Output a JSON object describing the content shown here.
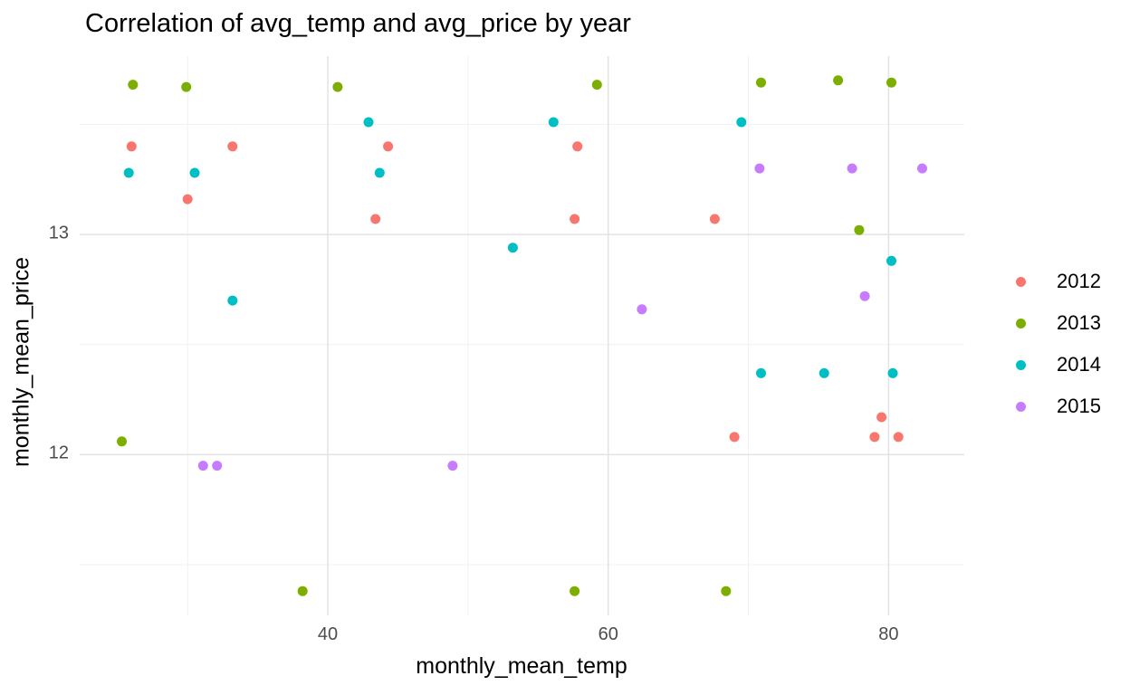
{
  "chart_data": {
    "type": "scatter",
    "title": "Correlation of avg_temp and avg_price by year",
    "xlabel": "monthly_mean_temp",
    "ylabel": "monthly_mean_price",
    "xlim": [
      22.3,
      85.4
    ],
    "ylim": [
      11.27,
      13.81
    ],
    "grid": "major_and_minor",
    "legend_position": "right",
    "point_radius_px": 5.5,
    "x_ticks": [
      {
        "value": 40,
        "label": "40"
      },
      {
        "value": 60,
        "label": "60"
      },
      {
        "value": 80,
        "label": "80"
      }
    ],
    "y_ticks": [
      {
        "value": 12,
        "label": "12"
      },
      {
        "value": 13,
        "label": "13"
      }
    ],
    "x_minor_gridlines": [
      30,
      50,
      70
    ],
    "y_minor_gridlines": [
      11.5,
      12.5,
      13.5
    ],
    "series": [
      {
        "name": "2012",
        "color": "#F8766D",
        "points": [
          [
            26.0,
            13.4
          ],
          [
            30.0,
            13.16
          ],
          [
            33.2,
            13.4
          ],
          [
            43.4,
            13.07
          ],
          [
            44.3,
            13.4
          ],
          [
            57.6,
            13.07
          ],
          [
            57.8,
            13.4
          ],
          [
            67.6,
            13.07
          ],
          [
            69.0,
            12.08
          ],
          [
            79.0,
            12.08
          ],
          [
            79.5,
            12.17
          ],
          [
            80.7,
            12.08
          ]
        ]
      },
      {
        "name": "2013",
        "color": "#7CAE00",
        "points": [
          [
            25.3,
            12.06
          ],
          [
            26.1,
            13.68
          ],
          [
            29.9,
            13.67
          ],
          [
            38.2,
            11.38
          ],
          [
            40.7,
            13.67
          ],
          [
            57.6,
            11.38
          ],
          [
            59.2,
            13.68
          ],
          [
            68.4,
            11.38
          ],
          [
            70.9,
            13.69
          ],
          [
            76.4,
            13.7
          ],
          [
            77.9,
            13.02
          ],
          [
            80.2,
            13.69
          ]
        ]
      },
      {
        "name": "2014",
        "color": "#00BFC4",
        "points": [
          [
            25.8,
            13.28
          ],
          [
            30.5,
            13.28
          ],
          [
            33.2,
            12.7
          ],
          [
            42.9,
            13.51
          ],
          [
            43.7,
            13.28
          ],
          [
            53.2,
            12.94
          ],
          [
            56.1,
            13.51
          ],
          [
            69.5,
            13.51
          ],
          [
            70.9,
            12.37
          ],
          [
            75.4,
            12.37
          ],
          [
            80.2,
            12.88
          ],
          [
            80.3,
            12.37
          ]
        ]
      },
      {
        "name": "2015",
        "color": "#C77CFF",
        "points": [
          [
            31.1,
            11.95
          ],
          [
            32.1,
            11.95
          ],
          [
            48.9,
            11.95
          ],
          [
            62.4,
            12.66
          ],
          [
            70.8,
            13.3
          ],
          [
            77.4,
            13.3
          ],
          [
            78.3,
            12.72
          ],
          [
            82.4,
            13.3
          ]
        ]
      }
    ],
    "colors": {
      "background": "#FFFFFF",
      "grid_major": "#E3E3E3",
      "grid_minor": "#F1F1F1",
      "tick_label": "#4D4D4D",
      "text": "#000000"
    }
  }
}
